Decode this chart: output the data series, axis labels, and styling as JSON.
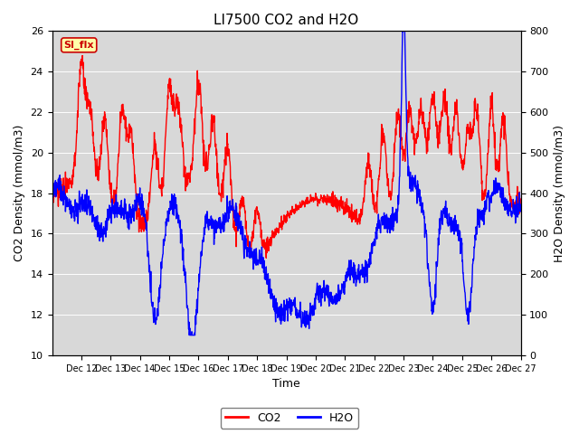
{
  "title": "LI7500 CO2 and H2O",
  "xlabel": "Time",
  "ylabel_left": "CO2 Density (mmol/m3)",
  "ylabel_right": "H2O Density (mmol/m3)",
  "ylim_left": [
    10,
    26
  ],
  "ylim_right": [
    0,
    800
  ],
  "yticks_left": [
    10,
    12,
    14,
    16,
    18,
    20,
    22,
    24,
    26
  ],
  "yticks_right": [
    0,
    100,
    200,
    300,
    400,
    500,
    600,
    700,
    800
  ],
  "xlim": [
    11,
    27
  ],
  "xtick_positions": [
    12,
    13,
    14,
    15,
    16,
    17,
    18,
    19,
    20,
    21,
    22,
    23,
    24,
    25,
    26,
    27
  ],
  "xtick_labels": [
    "Dec 12",
    "Dec 13",
    "Dec 14",
    "Dec 15",
    "Dec 16",
    "Dec 17",
    "Dec 18",
    "Dec 19",
    "Dec 20",
    "Dec 21",
    "Dec 22",
    "Dec 23",
    "Dec 24",
    "Dec 25",
    "Dec 26",
    "Dec 27"
  ],
  "co2_color": "#FF0000",
  "h2o_color": "#0000FF",
  "background_color": "#D8D8D8",
  "fig_background": "#FFFFFF",
  "si_flx_box_facecolor": "#FFFFAA",
  "si_flx_box_edgecolor": "#CC0000",
  "si_flx_text": "SI_flx",
  "si_flx_text_color": "#CC0000",
  "legend_co2": "CO2",
  "legend_h2o": "H2O",
  "title_fontsize": 11,
  "axis_label_fontsize": 9,
  "tick_fontsize": 8,
  "legend_fontsize": 9,
  "linewidth": 1.0
}
